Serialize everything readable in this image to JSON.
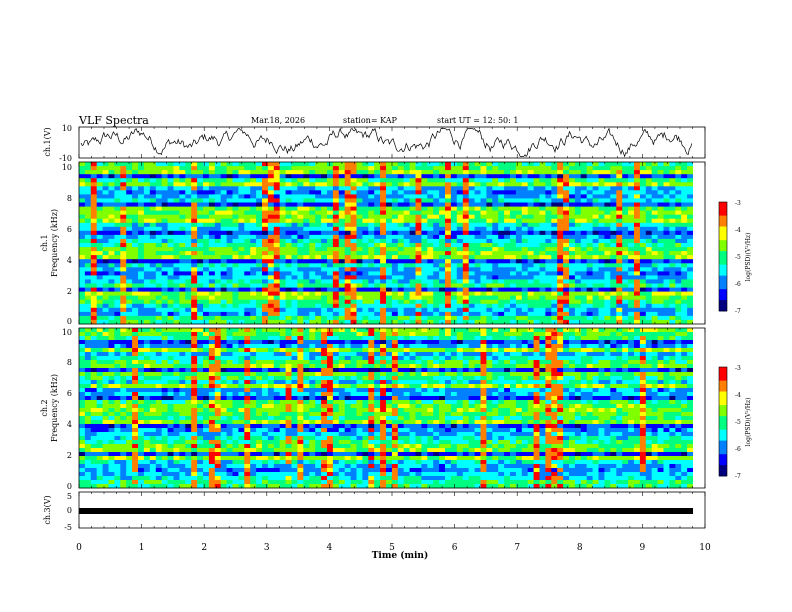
{
  "header": {
    "title": "VLF Spectra",
    "date": "Mar.18, 2026",
    "station": "station= KAP",
    "start": "start  UT  =   12: 50: 1"
  },
  "chart_data": [
    {
      "type": "line",
      "name": "ch1-waveform",
      "ylabel": "ch.1(V)",
      "ylim": [
        -10,
        10
      ],
      "yticks": [
        "10",
        "-10"
      ],
      "xlim": [
        0,
        10
      ],
      "note": "noisy voltage trace oscillating between about -5 and +7 V"
    },
    {
      "type": "heatmap",
      "name": "ch1-spectrogram",
      "ylabel_lines": [
        "ch.1",
        "Frequency (kHz)"
      ],
      "ylim": [
        0,
        10
      ],
      "yticks": [
        "0",
        "2",
        "4",
        "6",
        "8",
        "10"
      ],
      "xlim": [
        0,
        10.0
      ],
      "colorbar": {
        "label": "log(PSD)(V²/Hz)",
        "range": [
          -7,
          -3
        ],
        "ticks": [
          "-3",
          "-4",
          "-5",
          "-6",
          "-7"
        ]
      }
    },
    {
      "type": "heatmap",
      "name": "ch2-spectrogram",
      "ylabel_lines": [
        "ch.2",
        "Frequency (kHz)"
      ],
      "ylim": [
        0,
        10
      ],
      "yticks": [
        "0",
        "2",
        "4",
        "6",
        "8",
        "10"
      ],
      "xlim": [
        0,
        10.0
      ],
      "colorbar": {
        "label": "log(PSD)(V²/Hz)",
        "range": [
          -7,
          -3
        ],
        "ticks": [
          "-3",
          "-4",
          "-5",
          "-6",
          "-7"
        ]
      }
    },
    {
      "type": "line",
      "name": "ch3-waveform",
      "ylabel": "ch.3(V)",
      "ylim": [
        -5,
        5
      ],
      "yticks": [
        "5",
        "0",
        "-5"
      ],
      "xlim": [
        0,
        10
      ],
      "note": "dense square signal between about -1 and 0 V"
    }
  ],
  "xaxis": {
    "label": "Time  (min)",
    "ticks": [
      "0",
      "1",
      "2",
      "3",
      "4",
      "5",
      "6",
      "7",
      "8",
      "9",
      "10"
    ],
    "range": [
      0,
      10
    ]
  },
  "colors": {
    "colormap": [
      "#00007f",
      "#0000ff",
      "#0080ff",
      "#00ffff",
      "#00ff80",
      "#80ff00",
      "#ffff00",
      "#ff8000",
      "#ff0000",
      "#ffffff"
    ]
  }
}
